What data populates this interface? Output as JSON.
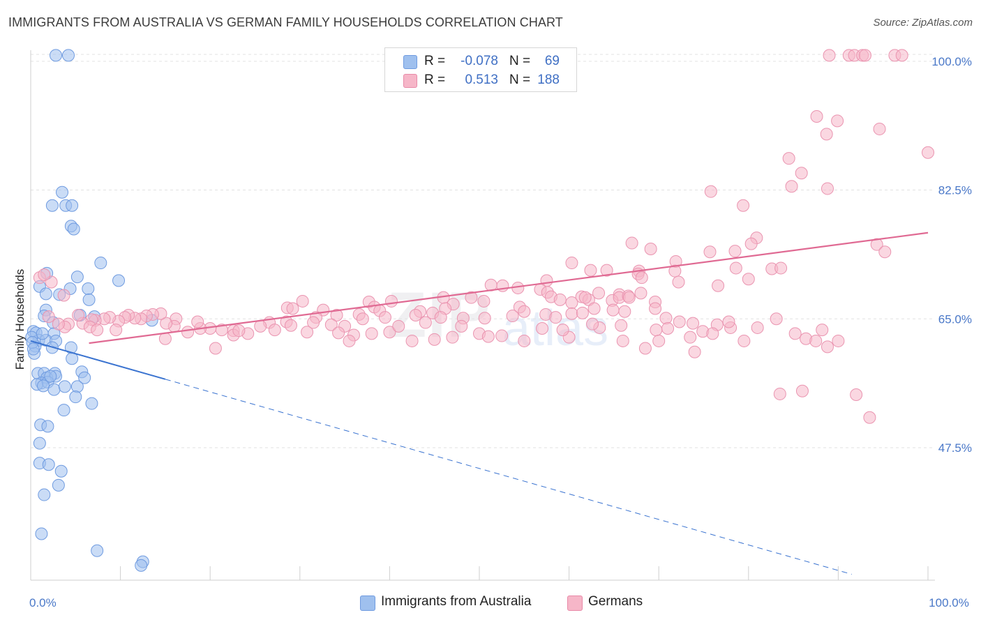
{
  "title": "IMMIGRANTS FROM AUSTRALIA VS GERMAN FAMILY HOUSEHOLDS CORRELATION CHART",
  "source": "Source: ZipAtlas.com",
  "watermark": "ZIP",
  "watermark2": "atlas",
  "legend": {
    "r_label": "R =",
    "n_label": "N =",
    "rows": [
      {
        "r": "-0.078",
        "n": "69",
        "color": "#9fc0ee"
      },
      {
        "r": "0.513",
        "n": "188",
        "color": "#f6b6c8"
      }
    ]
  },
  "bottom_legend": [
    {
      "label": "Immigrants from Australia",
      "color": "#9fc0ee"
    },
    {
      "label": "Germans",
      "color": "#f6b6c8"
    }
  ],
  "chart_data": {
    "type": "scatter",
    "ylabel": "Family Households",
    "xlim": [
      0,
      100
    ],
    "ylim": [
      29.5,
      101.5
    ],
    "y_ticks": [
      {
        "v": 47.5,
        "label": "47.5%"
      },
      {
        "v": 65.0,
        "label": "65.0%"
      },
      {
        "v": 82.5,
        "label": "82.5%"
      },
      {
        "v": 100.0,
        "label": "100.0%"
      }
    ],
    "x_tick_labels": [
      {
        "v": 0,
        "label": "0.0%"
      },
      {
        "v": 100,
        "label": "100.0%"
      }
    ],
    "x_minor_ticks": [
      0,
      10,
      20,
      30,
      40,
      50,
      60,
      70,
      80,
      90,
      100
    ],
    "grid": true,
    "series": [
      {
        "name": "Immigrants from Australia",
        "color": "#7aa6e6",
        "line_color": "#3a73d0",
        "trend": {
          "x0": 0,
          "y0": 62.0,
          "x1": 15,
          "y1": 56.8,
          "dash_to_x": 91.5,
          "dash_to_y": 30.3
        },
        "points": [
          [
            2.8,
            100.8
          ],
          [
            4.2,
            100.8
          ],
          [
            2.4,
            80.4
          ],
          [
            3.9,
            80.4
          ],
          [
            4.6,
            80.4
          ],
          [
            3.5,
            82.2
          ],
          [
            4.5,
            77.6
          ],
          [
            4.8,
            77.2
          ],
          [
            7.8,
            72.6
          ],
          [
            1.8,
            71.2
          ],
          [
            5.2,
            70.7
          ],
          [
            9.8,
            70.2
          ],
          [
            1.0,
            69.4
          ],
          [
            4.4,
            69.1
          ],
          [
            6.4,
            69.1
          ],
          [
            1.7,
            68.4
          ],
          [
            3.2,
            68.3
          ],
          [
            6.5,
            67.6
          ],
          [
            1.7,
            66.2
          ],
          [
            1.5,
            65.4
          ],
          [
            7.1,
            65.3
          ],
          [
            0.3,
            63.3
          ],
          [
            0.6,
            63.1
          ],
          [
            2.6,
            63.0
          ],
          [
            0.9,
            62.1
          ],
          [
            1.7,
            62.1
          ],
          [
            2.8,
            62.0
          ],
          [
            0.5,
            61.3
          ],
          [
            2.4,
            61.1
          ],
          [
            4.5,
            61.1
          ],
          [
            0.4,
            60.3
          ],
          [
            4.6,
            59.6
          ],
          [
            0.8,
            57.6
          ],
          [
            1.5,
            57.6
          ],
          [
            2.7,
            57.6
          ],
          [
            5.7,
            57.8
          ],
          [
            1.8,
            57.0
          ],
          [
            2.8,
            57.2
          ],
          [
            1.2,
            56.3
          ],
          [
            1.9,
            56.4
          ],
          [
            0.7,
            56.1
          ],
          [
            1.4,
            55.9
          ],
          [
            5.2,
            55.8
          ],
          [
            2.6,
            55.4
          ],
          [
            5.0,
            54.4
          ],
          [
            6.8,
            53.5
          ],
          [
            3.7,
            52.6
          ],
          [
            1.1,
            50.6
          ],
          [
            1.9,
            50.4
          ],
          [
            1.0,
            48.1
          ],
          [
            1.0,
            45.4
          ],
          [
            2.0,
            45.2
          ],
          [
            3.4,
            44.3
          ],
          [
            3.1,
            42.4
          ],
          [
            1.5,
            41.1
          ],
          [
            1.2,
            35.8
          ],
          [
            7.4,
            33.5
          ],
          [
            12.5,
            32.0
          ],
          [
            12.3,
            31.5
          ],
          [
            13.5,
            64.8
          ],
          [
            0.1,
            62.5
          ],
          [
            0.2,
            61.8
          ],
          [
            0.3,
            60.9
          ],
          [
            2.2,
            57.2
          ],
          [
            3.8,
            55.8
          ],
          [
            6.0,
            57.0
          ],
          [
            1.3,
            63.0
          ],
          [
            2.5,
            64.5
          ],
          [
            5.5,
            65.5
          ]
        ],
        "point_color": "#9fc0ee"
      },
      {
        "name": "Germans",
        "color": "#f08aaa",
        "line_color": "#e06a93",
        "trend": {
          "x0": 6.5,
          "y0": 61.7,
          "x1": 100,
          "y1": 76.7
        },
        "point_color": "#f6b6c8",
        "points": [
          [
            89.0,
            100.8
          ],
          [
            91.2,
            100.8
          ],
          [
            91.8,
            100.8
          ],
          [
            92.7,
            100.8
          ],
          [
            93.0,
            100.8
          ],
          [
            96.3,
            100.8
          ],
          [
            97.1,
            100.8
          ],
          [
            87.6,
            92.5
          ],
          [
            89.9,
            91.9
          ],
          [
            88.7,
            90.1
          ],
          [
            94.6,
            90.8
          ],
          [
            100.0,
            87.6
          ],
          [
            84.5,
            86.8
          ],
          [
            85.9,
            84.8
          ],
          [
            84.8,
            83.0
          ],
          [
            88.8,
            82.7
          ],
          [
            75.8,
            82.3
          ],
          [
            79.4,
            80.4
          ],
          [
            80.9,
            76.0
          ],
          [
            80.3,
            75.2
          ],
          [
            75.7,
            74.1
          ],
          [
            67.0,
            75.3
          ],
          [
            69.1,
            74.5
          ],
          [
            78.5,
            74.2
          ],
          [
            94.3,
            75.1
          ],
          [
            95.2,
            74.1
          ],
          [
            71.9,
            72.8
          ],
          [
            78.6,
            71.9
          ],
          [
            82.6,
            71.8
          ],
          [
            71.8,
            71.5
          ],
          [
            67.8,
            71.5
          ],
          [
            62.4,
            71.6
          ],
          [
            67.7,
            71.1
          ],
          [
            83.6,
            71.9
          ],
          [
            60.3,
            72.6
          ],
          [
            64.2,
            71.6
          ],
          [
            68.1,
            70.6
          ],
          [
            72.2,
            70.0
          ],
          [
            76.6,
            69.5
          ],
          [
            80.0,
            70.4
          ],
          [
            57.5,
            70.2
          ],
          [
            52.6,
            69.5
          ],
          [
            51.3,
            69.6
          ],
          [
            54.3,
            69.2
          ],
          [
            56.8,
            69.0
          ],
          [
            57.6,
            68.6
          ],
          [
            63.3,
            68.5
          ],
          [
            61.4,
            68.0
          ],
          [
            65.6,
            68.3
          ],
          [
            68.0,
            68.5
          ],
          [
            58.0,
            68.0
          ],
          [
            59.0,
            67.6
          ],
          [
            62.2,
            67.6
          ],
          [
            64.8,
            67.5
          ],
          [
            65.6,
            67.9
          ],
          [
            66.6,
            68.1
          ],
          [
            66.7,
            67.9
          ],
          [
            61.8,
            67.9
          ],
          [
            60.3,
            67.2
          ],
          [
            69.6,
            67.3
          ],
          [
            49.1,
            67.9
          ],
          [
            46.0,
            67.9
          ],
          [
            50.5,
            67.4
          ],
          [
            47.1,
            67.0
          ],
          [
            54.5,
            66.6
          ],
          [
            46.2,
            66.4
          ],
          [
            43.4,
            66.0
          ],
          [
            40.2,
            67.4
          ],
          [
            37.7,
            67.3
          ],
          [
            38.3,
            66.6
          ],
          [
            32.6,
            66.2
          ],
          [
            28.6,
            66.5
          ],
          [
            30.3,
            67.4
          ],
          [
            29.2,
            66.4
          ],
          [
            31.8,
            65.2
          ],
          [
            34.1,
            65.5
          ],
          [
            36.6,
            65.6
          ],
          [
            38.9,
            66.1
          ],
          [
            39.5,
            65.2
          ],
          [
            42.9,
            65.5
          ],
          [
            44.8,
            65.8
          ],
          [
            45.7,
            65.2
          ],
          [
            48.2,
            65.1
          ],
          [
            50.6,
            65.1
          ],
          [
            53.7,
            65.4
          ],
          [
            55.0,
            66.0
          ],
          [
            57.4,
            65.6
          ],
          [
            58.5,
            65.2
          ],
          [
            60.3,
            65.7
          ],
          [
            61.5,
            65.8
          ],
          [
            62.8,
            66.4
          ],
          [
            64.9,
            66.2
          ],
          [
            66.2,
            66.0
          ],
          [
            69.6,
            66.4
          ],
          [
            70.8,
            65.1
          ],
          [
            73.8,
            64.4
          ],
          [
            76.5,
            64.2
          ],
          [
            78.0,
            63.8
          ],
          [
            74.9,
            63.3
          ],
          [
            63.4,
            63.8
          ],
          [
            65.8,
            64.1
          ],
          [
            69.7,
            63.5
          ],
          [
            72.3,
            64.6
          ],
          [
            77.8,
            64.6
          ],
          [
            81.0,
            63.8
          ],
          [
            83.1,
            65.0
          ],
          [
            85.2,
            63.0
          ],
          [
            86.4,
            62.3
          ],
          [
            88.2,
            63.5
          ],
          [
            90.0,
            62.0
          ],
          [
            88.8,
            61.2
          ],
          [
            87.5,
            62.0
          ],
          [
            79.5,
            62.0
          ],
          [
            76.0,
            63.0
          ],
          [
            73.5,
            62.5
          ],
          [
            70.0,
            62.0
          ],
          [
            68.5,
            61.0
          ],
          [
            60.0,
            62.5
          ],
          [
            55.0,
            62.0
          ],
          [
            52.5,
            62.7
          ],
          [
            50.0,
            63.0
          ],
          [
            47.0,
            62.5
          ],
          [
            45.0,
            62.2
          ],
          [
            42.5,
            62.0
          ],
          [
            40.0,
            63.2
          ],
          [
            38.0,
            63.0
          ],
          [
            36.0,
            62.8
          ],
          [
            35.0,
            64.0
          ],
          [
            33.5,
            64.2
          ],
          [
            30.8,
            63.2
          ],
          [
            28.5,
            64.6
          ],
          [
            26.6,
            64.5
          ],
          [
            25.6,
            64.0
          ],
          [
            24.2,
            63.0
          ],
          [
            22.6,
            63.4
          ],
          [
            21.3,
            63.5
          ],
          [
            20.0,
            63.7
          ],
          [
            18.9,
            63.7
          ],
          [
            18.6,
            64.6
          ],
          [
            16.2,
            65.0
          ],
          [
            16.0,
            64.0
          ],
          [
            15.1,
            64.4
          ],
          [
            14.5,
            65.7
          ],
          [
            13.6,
            65.6
          ],
          [
            12.9,
            65.4
          ],
          [
            12.3,
            65.0
          ],
          [
            11.6,
            65.1
          ],
          [
            10.9,
            65.5
          ],
          [
            10.5,
            65.2
          ],
          [
            9.8,
            64.7
          ],
          [
            8.8,
            65.2
          ],
          [
            8.2,
            65.0
          ],
          [
            7.2,
            64.8
          ],
          [
            6.8,
            64.9
          ],
          [
            5.8,
            64.4
          ],
          [
            5.3,
            65.5
          ],
          [
            4.2,
            64.3
          ],
          [
            3.8,
            63.9
          ],
          [
            3.1,
            64.3
          ],
          [
            2.0,
            65.3
          ],
          [
            2.3,
            70.0
          ],
          [
            1.0,
            70.6
          ],
          [
            1.5,
            71.0
          ],
          [
            3.7,
            68.2
          ],
          [
            6.6,
            63.9
          ],
          [
            7.4,
            63.5
          ],
          [
            9.5,
            63.5
          ],
          [
            15.0,
            62.3
          ],
          [
            17.5,
            63.2
          ],
          [
            20.6,
            61.0
          ],
          [
            22.6,
            62.8
          ],
          [
            23.2,
            63.4
          ],
          [
            27.2,
            63.5
          ],
          [
            29.0,
            64.1
          ],
          [
            31.5,
            64.5
          ],
          [
            34.3,
            63.1
          ],
          [
            35.5,
            62.0
          ],
          [
            37.0,
            65.0
          ],
          [
            41.0,
            64.0
          ],
          [
            44.0,
            64.5
          ],
          [
            48.0,
            64.0
          ],
          [
            51.0,
            62.6
          ],
          [
            57.0,
            63.7
          ],
          [
            59.3,
            63.5
          ],
          [
            62.6,
            64.3
          ],
          [
            66.0,
            62.0
          ],
          [
            71.0,
            63.7
          ],
          [
            74.0,
            60.5
          ],
          [
            86.0,
            55.2
          ],
          [
            92.0,
            54.7
          ],
          [
            93.5,
            51.6
          ],
          [
            83.5,
            54.8
          ]
        ]
      }
    ]
  }
}
